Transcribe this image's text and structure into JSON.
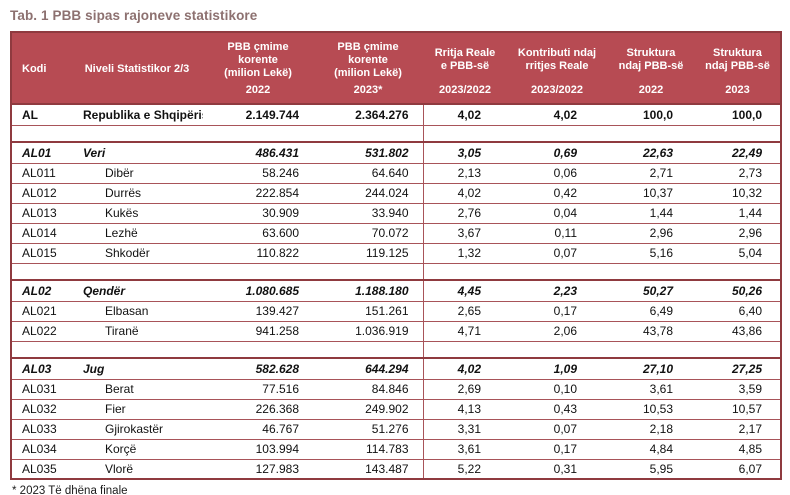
{
  "page": {
    "title": "Tab. 1 PBB sipas rajoneve statistikore",
    "footnote": "* 2023 Të dhëna finale"
  },
  "theme": {
    "header_bg": "#B74B53",
    "header_text": "#FFFFFF",
    "border_inner": "#A85459",
    "border_outer": "#8F3A3F",
    "title_color": "#8D7170"
  },
  "table": {
    "columns": [
      {
        "label": "Kodi",
        "year": ""
      },
      {
        "label": "Niveli Statistikor 2/3",
        "year": ""
      },
      {
        "label": "PBB çmime\nkorente\n(milion Lekë)",
        "year": "2022"
      },
      {
        "label": "PBB çmime\nkorente\n(milion Lekë)",
        "year": "2023*"
      },
      {
        "label": "Rritja Reale\ne PBB-së",
        "year": "2023/2022"
      },
      {
        "label": "Kontributi ndaj\nrritjes Reale",
        "year": "2023/2022"
      },
      {
        "label": "Struktura\nndaj PBB-së",
        "year": "2022"
      },
      {
        "label": "Struktura\nndaj PBB-së",
        "year": "2023"
      }
    ],
    "rows": [
      {
        "type": "total",
        "cells": [
          "AL",
          "Republika e Shqipërisë",
          "2.149.744",
          "2.364.276",
          "4,02",
          "4,02",
          "100,0",
          "100,0"
        ]
      },
      {
        "type": "spacer",
        "cells": [
          "",
          "",
          "",
          "",
          "",
          "",
          "",
          ""
        ]
      },
      {
        "type": "group",
        "cells": [
          "AL01",
          "Veri",
          "486.431",
          "531.802",
          "3,05",
          "0,69",
          "22,63",
          "22,49"
        ]
      },
      {
        "type": "sub",
        "cells": [
          "AL011",
          "Dibër",
          "58.246",
          "64.640",
          "2,13",
          "0,06",
          "2,71",
          "2,73"
        ]
      },
      {
        "type": "sub",
        "cells": [
          "AL012",
          "Durrës",
          "222.854",
          "244.024",
          "4,02",
          "0,42",
          "10,37",
          "10,32"
        ]
      },
      {
        "type": "sub",
        "cells": [
          "AL013",
          "Kukës",
          "30.909",
          "33.940",
          "2,76",
          "0,04",
          "1,44",
          "1,44"
        ]
      },
      {
        "type": "sub",
        "cells": [
          "AL014",
          "Lezhë",
          "63.600",
          "70.072",
          "3,67",
          "0,11",
          "2,96",
          "2,96"
        ]
      },
      {
        "type": "sub",
        "cells": [
          "AL015",
          "Shkodër",
          "110.822",
          "119.125",
          "1,32",
          "0,07",
          "5,16",
          "5,04"
        ]
      },
      {
        "type": "spacer",
        "cells": [
          "",
          "",
          "",
          "",
          "",
          "",
          "",
          ""
        ]
      },
      {
        "type": "group",
        "cells": [
          "AL02",
          "Qendër",
          "1.080.685",
          "1.188.180",
          "4,45",
          "2,23",
          "50,27",
          "50,26"
        ]
      },
      {
        "type": "sub",
        "cells": [
          "AL021",
          "Elbasan",
          "139.427",
          "151.261",
          "2,65",
          "0,17",
          "6,49",
          "6,40"
        ]
      },
      {
        "type": "sub",
        "cells": [
          "AL022",
          "Tiranë",
          "941.258",
          "1.036.919",
          "4,71",
          "2,06",
          "43,78",
          "43,86"
        ]
      },
      {
        "type": "spacer",
        "cells": [
          "",
          "",
          "",
          "",
          "",
          "",
          "",
          ""
        ]
      },
      {
        "type": "group",
        "cells": [
          "AL03",
          "Jug",
          "582.628",
          "644.294",
          "4,02",
          "1,09",
          "27,10",
          "27,25"
        ]
      },
      {
        "type": "sub",
        "cells": [
          "AL031",
          "Berat",
          "77.516",
          "84.846",
          "2,69",
          "0,10",
          "3,61",
          "3,59"
        ]
      },
      {
        "type": "sub",
        "cells": [
          "AL032",
          "Fier",
          "226.368",
          "249.902",
          "4,13",
          "0,43",
          "10,53",
          "10,57"
        ]
      },
      {
        "type": "sub",
        "cells": [
          "AL033",
          "Gjirokastër",
          "46.767",
          "51.276",
          "3,31",
          "0,07",
          "2,18",
          "2,17"
        ]
      },
      {
        "type": "sub",
        "cells": [
          "AL034",
          "Korçë",
          "103.994",
          "114.783",
          "3,61",
          "0,17",
          "4,84",
          "4,85"
        ]
      },
      {
        "type": "sub",
        "cells": [
          "AL035",
          "Vlorë",
          "127.983",
          "143.487",
          "5,22",
          "0,31",
          "5,95",
          "6,07"
        ]
      }
    ]
  }
}
